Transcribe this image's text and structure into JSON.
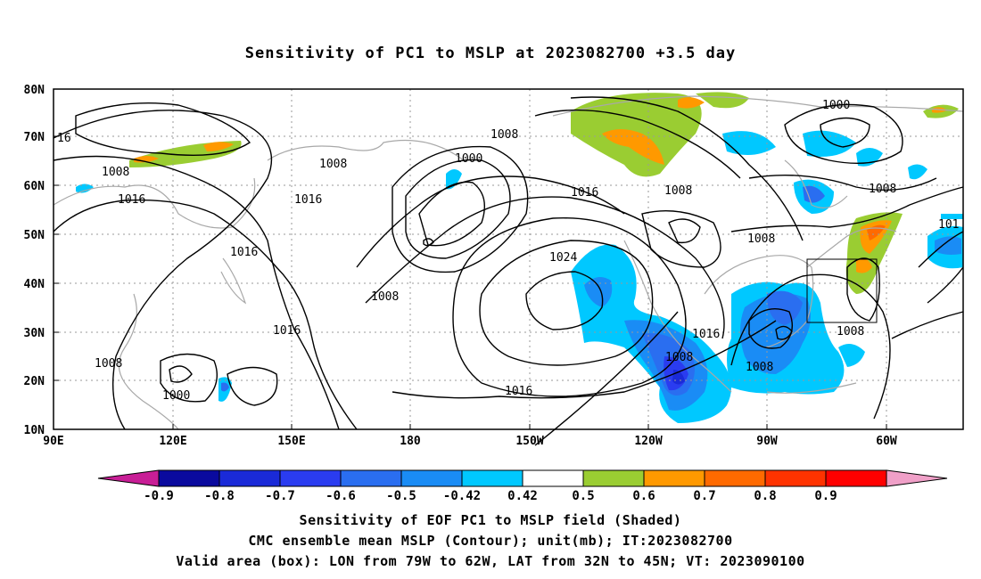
{
  "title": "Sensitivity of PC1 to MSLP at 2023082700 +3.5 day",
  "lat_labels": [
    "80N",
    "70N",
    "60N",
    "50N",
    "40N",
    "30N",
    "20N",
    "10N"
  ],
  "lon_labels": [
    "90E",
    "120E",
    "150E",
    "180",
    "150W",
    "120W",
    "90W",
    "60W"
  ],
  "colorbar": {
    "ticks": [
      "-0.9",
      "-0.8",
      "-0.7",
      "-0.6",
      "-0.5",
      "-0.42",
      "0.42",
      "0.5",
      "0.6",
      "0.7",
      "0.8",
      "0.9"
    ],
    "colors": [
      "#0a0a9e",
      "#1a2ad8",
      "#2a3cf0",
      "#2a6ef0",
      "#1a8cf5",
      "#00c8ff",
      "#ffffff",
      "#9acd32",
      "#ff9900",
      "#ff6a00",
      "#ff3300",
      "#ff0000"
    ],
    "under_color": "#c81e96",
    "over_color": "#f0a0c8"
  },
  "contour_labels": [
    {
      "text": "16"
    },
    {
      "text": "1008"
    },
    {
      "text": "1016"
    },
    {
      "text": "1008"
    },
    {
      "text": "1016"
    },
    {
      "text": "1016"
    },
    {
      "text": "1008"
    },
    {
      "text": "1000"
    },
    {
      "text": "1008"
    },
    {
      "text": "1008"
    },
    {
      "text": "1000"
    },
    {
      "text": "1016"
    },
    {
      "text": "1008"
    },
    {
      "text": "1016"
    },
    {
      "text": "1008"
    },
    {
      "text": "1024"
    },
    {
      "text": "1016"
    },
    {
      "text": "1016"
    },
    {
      "text": "1008"
    },
    {
      "text": "1008"
    },
    {
      "text": "1008"
    },
    {
      "text": "1000"
    },
    {
      "text": "1008"
    },
    {
      "text": "101"
    }
  ],
  "captions": [
    "Sensitivity of EOF PC1 to MSLP field (Shaded)",
    "CMC ensemble mean MSLP (Contour); unit(mb); IT:2023082700",
    "Valid area (box): LON from 79W to 62W, LAT from 32N to 45N; VT: 2023090100"
  ]
}
